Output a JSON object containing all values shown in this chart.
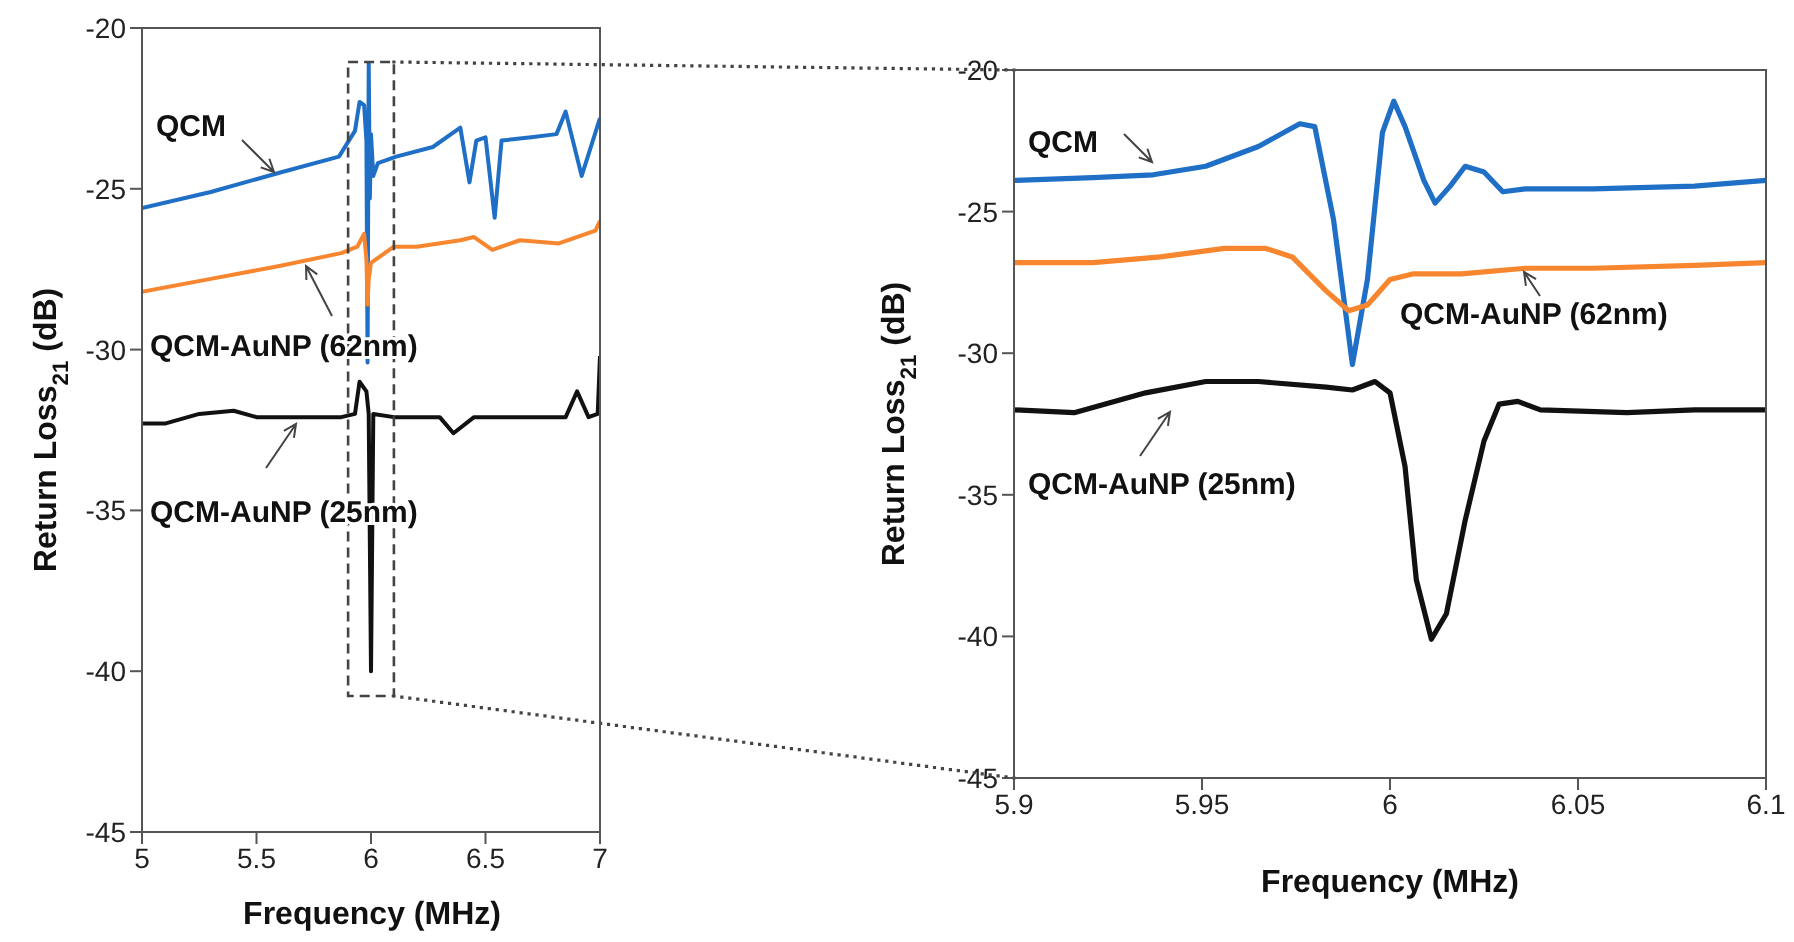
{
  "chart_data": [
    {
      "type": "line",
      "xlabel": "Frequency (MHz)",
      "ylabel": "Return Loss$_{21}$ (dB)",
      "xlim": [
        5,
        7
      ],
      "xticks": [
        5,
        5.5,
        6,
        6.5,
        7
      ],
      "ylim": [
        -45,
        -20
      ],
      "yticks": [
        -45,
        -40,
        -35,
        -30,
        -25,
        -20
      ],
      "series": [
        {
          "name": "QCM",
          "color": "#1f6fc6",
          "x": [
            5,
            5.3,
            5.6,
            5.86,
            5.93,
            5.95,
            5.97,
            5.98,
            5.985,
            5.99,
            5.995,
            6.0,
            6.01,
            6.03,
            6.11,
            6.27,
            6.39,
            6.43,
            6.46,
            6.5,
            6.54,
            6.57,
            6.7,
            6.81,
            6.85,
            6.92,
            7
          ],
          "values": [
            -25.6,
            -25.1,
            -24.5,
            -24.0,
            -23.2,
            -22.3,
            -22.4,
            -23.5,
            -30.4,
            -21.1,
            -25.3,
            -23.3,
            -24.6,
            -24.2,
            -24.0,
            -23.7,
            -23.1,
            -24.8,
            -23.5,
            -23.4,
            -25.9,
            -23.5,
            -23.4,
            -23.3,
            -22.6,
            -24.6,
            -22.8
          ]
        },
        {
          "name": "QCM-AuNP (62nm)",
          "color": "#f7862e",
          "x": [
            5,
            5.3,
            5.6,
            5.87,
            5.94,
            5.97,
            5.98,
            5.985,
            5.99,
            6.0,
            6.1,
            6.2,
            6.39,
            6.45,
            6.53,
            6.65,
            6.82,
            6.98,
            7
          ],
          "values": [
            -28.2,
            -27.8,
            -27.4,
            -27.0,
            -26.8,
            -26.4,
            -27.2,
            -28.6,
            -27.8,
            -27.3,
            -26.8,
            -26.8,
            -26.6,
            -26.5,
            -26.9,
            -26.6,
            -26.7,
            -26.3,
            -26.0
          ]
        },
        {
          "name": "QCM-AuNP (25nm)",
          "color": "#111111",
          "x": [
            5,
            5.1,
            5.25,
            5.4,
            5.5,
            5.7,
            5.87,
            5.93,
            5.95,
            5.98,
            5.99,
            6.0,
            6.01,
            6.1,
            6.3,
            6.36,
            6.45,
            6.7,
            6.85,
            6.9,
            6.95,
            6.99,
            7
          ],
          "values": [
            -32.3,
            -32.3,
            -32.0,
            -31.9,
            -32.1,
            -32.1,
            -32.1,
            -32.0,
            -31.0,
            -31.3,
            -32.0,
            -40.0,
            -32.0,
            -32.1,
            -32.1,
            -32.6,
            -32.1,
            -32.1,
            -32.1,
            -31.3,
            -32.1,
            -32.0,
            -30.2
          ]
        }
      ]
    },
    {
      "type": "line",
      "xlabel": "Frequency (MHz)",
      "ylabel": "Return Loss$_{21}$ (dB)",
      "xlim": [
        5.9,
        6.1
      ],
      "xticks": [
        5.9,
        5.95,
        6,
        6.05,
        6.1
      ],
      "ylim": [
        -45,
        -20
      ],
      "yticks": [
        -45,
        -40,
        -35,
        -30,
        -25,
        -20
      ],
      "series": [
        {
          "name": "QCM",
          "color": "#1f6fc6",
          "x": [
            5.9,
            5.921,
            5.937,
            5.951,
            5.965,
            5.976,
            5.98,
            5.985,
            5.99,
            5.994,
            5.998,
            6.001,
            6.004,
            6.009,
            6.012,
            6.016,
            6.02,
            6.025,
            6.03,
            6.036,
            6.054,
            6.081,
            6.1
          ],
          "values": [
            -23.9,
            -23.8,
            -23.7,
            -23.4,
            -22.7,
            -21.9,
            -22.0,
            -25.3,
            -30.4,
            -27.4,
            -22.2,
            -21.1,
            -22.0,
            -23.9,
            -24.7,
            -24.1,
            -23.4,
            -23.6,
            -24.3,
            -24.2,
            -24.2,
            -24.1,
            -23.9
          ]
        },
        {
          "name": "QCM-AuNP (62nm)",
          "color": "#f7862e",
          "x": [
            5.9,
            5.921,
            5.939,
            5.956,
            5.967,
            5.974,
            5.983,
            5.989,
            5.994,
            6.0,
            6.006,
            6.019,
            6.036,
            6.054,
            6.081,
            6.1
          ],
          "values": [
            -26.8,
            -26.8,
            -26.6,
            -26.3,
            -26.3,
            -26.6,
            -27.8,
            -28.5,
            -28.3,
            -27.4,
            -27.2,
            -27.2,
            -27.0,
            -27.0,
            -26.9,
            -26.8
          ]
        },
        {
          "name": "QCM-AuNP (25nm)",
          "color": "#111111",
          "x": [
            5.9,
            5.916,
            5.935,
            5.951,
            5.965,
            5.983,
            5.99,
            5.996,
            6.0,
            6.004,
            6.007,
            6.011,
            6.015,
            6.02,
            6.025,
            6.029,
            6.034,
            6.04,
            6.063,
            6.081,
            6.1
          ],
          "values": [
            -32.0,
            -32.1,
            -31.4,
            -31.0,
            -31.0,
            -31.2,
            -31.3,
            -31.0,
            -31.4,
            -34.0,
            -38.0,
            -40.1,
            -39.2,
            -35.9,
            -33.1,
            -31.8,
            -31.7,
            -32.0,
            -32.1,
            -32.0,
            -32.0
          ]
        }
      ]
    }
  ]
}
